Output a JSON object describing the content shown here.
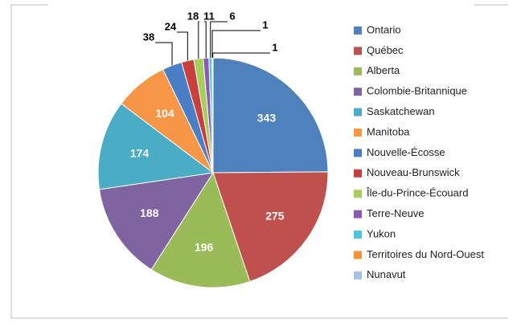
{
  "chart_data": {
    "type": "pie",
    "categories": [
      "Ontario",
      "Québec",
      "Alberta",
      "Colombie-Britannique",
      "Saskatchewan",
      "Manitoba",
      "Nouvelle-Écosse",
      "Nouveau-Brunswick",
      "Île-du-Prince-Écouard",
      "Terre-Neuve",
      "Yukon",
      "Territoires du Nord-Ouest",
      "Nunavut"
    ],
    "values": [
      343,
      275,
      196,
      188,
      174,
      104,
      38,
      24,
      18,
      11,
      6,
      1,
      1
    ],
    "colors": [
      "#4f81bd",
      "#c0504d",
      "#9bbb59",
      "#8064a2",
      "#4bacc6",
      "#f79646",
      "#4a7fc8",
      "#c7403d",
      "#a4d05a",
      "#8a5bb0",
      "#4fc3e0",
      "#f7913a",
      "#a9c0e0"
    ],
    "legend": "right"
  }
}
